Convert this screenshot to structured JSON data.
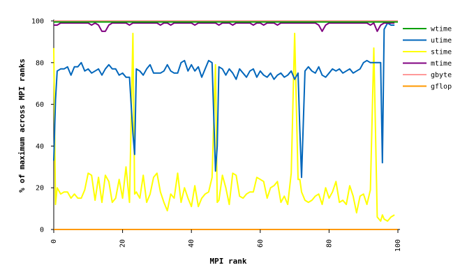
{
  "chart_data": {
    "type": "line",
    "xlabel": "MPI rank",
    "ylabel": "% of maximum across MPI ranks",
    "xlim": [
      0,
      100
    ],
    "ylim": [
      0,
      100
    ],
    "x_ticks": [
      0,
      20,
      40,
      60,
      80,
      100
    ],
    "y_ticks": [
      0,
      20,
      40,
      60,
      80,
      100
    ],
    "grid": false,
    "legend_position": "right",
    "series": [
      {
        "name": "wtime",
        "color": "#00a000",
        "x": [
          0,
          100
        ],
        "values": [
          99.5,
          99.5
        ]
      },
      {
        "name": "utime",
        "color": "#0066bb",
        "x": [
          0,
          0.5,
          1,
          2,
          3,
          4,
          5,
          6,
          7,
          8,
          9,
          10,
          11,
          12,
          13,
          14,
          15,
          16,
          17,
          18,
          19,
          20,
          21,
          22,
          23,
          23.5,
          24,
          25,
          26,
          27,
          28,
          29,
          30,
          31,
          32,
          33,
          34,
          35,
          36,
          37,
          38,
          39,
          40,
          41,
          42,
          43,
          44,
          45,
          46,
          47,
          47.5,
          48,
          49,
          50,
          51,
          52,
          53,
          54,
          55,
          56,
          57,
          58,
          59,
          60,
          61,
          62,
          63,
          64,
          65,
          66,
          67,
          68,
          69,
          70,
          71,
          71.5,
          72,
          73,
          74,
          75,
          76,
          77,
          78,
          79,
          80,
          81,
          82,
          83,
          84,
          85,
          86,
          87,
          88,
          89,
          90,
          91,
          92,
          93,
          94,
          95,
          95.5,
          96,
          97,
          98,
          99
        ],
        "values": [
          33,
          62,
          76,
          77,
          77,
          78,
          74,
          78,
          78,
          80,
          76,
          77,
          75,
          76,
          77,
          74,
          77,
          79,
          77,
          77,
          74,
          75,
          73,
          73,
          46,
          36,
          77,
          76,
          74,
          77,
          79,
          75,
          75,
          75,
          76,
          79,
          76,
          75,
          75,
          80,
          81,
          76,
          79,
          76,
          78,
          73,
          77,
          81,
          80,
          28,
          40,
          78,
          77,
          74,
          77,
          75,
          72,
          77,
          75,
          73,
          76,
          77,
          73,
          76,
          74,
          73,
          75,
          72,
          74,
          75,
          73,
          74,
          76,
          72,
          75,
          48,
          25,
          76,
          78,
          76,
          75,
          78,
          74,
          73,
          75,
          77,
          76,
          77,
          75,
          76,
          77,
          75,
          76,
          77,
          80,
          81,
          80,
          80,
          80,
          80,
          32,
          96,
          99,
          98,
          98
        ]
      },
      {
        "name": "stime",
        "color": "#ffff00",
        "x": [
          0,
          0.5,
          1,
          2,
          3,
          4,
          5,
          6,
          7,
          8,
          9,
          10,
          11,
          12,
          13,
          14,
          15,
          16,
          17,
          18,
          19,
          20,
          21,
          22,
          23,
          23.5,
          24,
          25,
          26,
          27,
          28,
          29,
          30,
          31,
          32,
          33,
          34,
          35,
          36,
          37,
          38,
          39,
          40,
          41,
          42,
          43,
          44,
          45,
          46,
          47,
          47.5,
          48,
          49,
          50,
          51,
          52,
          53,
          54,
          55,
          56,
          57,
          58,
          59,
          60,
          61,
          62,
          63,
          64,
          65,
          66,
          67,
          68,
          69,
          70,
          71,
          71.5,
          72,
          73,
          74,
          75,
          76,
          77,
          78,
          79,
          80,
          81,
          82,
          83,
          84,
          85,
          86,
          87,
          88,
          89,
          90,
          91,
          92,
          93,
          94,
          95,
          95.5,
          96,
          97,
          98,
          99
        ],
        "values": [
          87,
          12,
          20,
          17,
          18,
          18,
          15,
          17,
          15,
          15,
          19,
          27,
          26,
          14,
          25,
          13,
          26,
          23,
          13,
          15,
          24,
          15,
          30,
          13,
          94,
          17,
          18,
          15,
          26,
          13,
          17,
          25,
          27,
          18,
          13,
          9,
          17,
          15,
          27,
          13,
          20,
          15,
          11,
          21,
          11,
          15,
          17,
          18,
          25,
          79,
          13,
          14,
          26,
          20,
          12,
          27,
          26,
          16,
          15,
          17,
          18,
          18,
          25,
          24,
          23,
          15,
          20,
          21,
          23,
          13,
          16,
          12,
          27,
          94,
          24,
          24,
          18,
          14,
          13,
          14,
          16,
          17,
          12,
          20,
          15,
          18,
          23,
          13,
          14,
          12,
          21,
          16,
          8,
          16,
          17,
          12,
          19,
          87,
          6,
          4,
          7,
          5,
          4,
          6,
          7
        ]
      },
      {
        "name": "mtime",
        "color": "#800080",
        "x": [
          0,
          1,
          2,
          3,
          4,
          5,
          6,
          7,
          8,
          9,
          10,
          11,
          12,
          13,
          14,
          15,
          16,
          17,
          18,
          19,
          20,
          21,
          22,
          23,
          24,
          25,
          26,
          27,
          28,
          29,
          30,
          31,
          32,
          33,
          34,
          35,
          36,
          37,
          38,
          39,
          40,
          41,
          42,
          43,
          44,
          45,
          46,
          47,
          48,
          49,
          50,
          51,
          52,
          53,
          54,
          55,
          56,
          57,
          58,
          59,
          60,
          61,
          62,
          63,
          64,
          65,
          66,
          67,
          68,
          69,
          70,
          71,
          72,
          73,
          74,
          75,
          76,
          77,
          78,
          79,
          80,
          81,
          82,
          83,
          84,
          85,
          86,
          87,
          88,
          89,
          90,
          91,
          92,
          93,
          94,
          95,
          96,
          97,
          98,
          99
        ],
        "values": [
          98,
          98,
          99,
          99,
          99,
          99,
          99,
          99,
          99,
          99,
          99,
          98,
          99,
          98,
          95,
          95,
          98,
          99,
          99,
          99,
          99,
          99,
          98,
          99,
          99,
          99,
          99,
          99,
          99,
          99,
          99,
          98,
          99,
          99,
          98,
          99,
          99,
          99,
          99,
          99,
          99,
          98,
          99,
          99,
          99,
          99,
          99,
          99,
          98,
          99,
          99,
          99,
          98,
          99,
          99,
          99,
          99,
          99,
          98,
          99,
          99,
          98,
          99,
          99,
          99,
          98,
          99,
          99,
          99,
          99,
          99,
          99,
          99,
          99,
          99,
          99,
          99,
          98,
          95,
          98,
          99,
          99,
          99,
          99,
          99,
          99,
          99,
          99,
          99,
          99,
          99,
          99,
          98,
          99,
          95,
          98,
          99,
          99,
          99,
          99
        ]
      },
      {
        "name": "gbyte",
        "color": "#ff9999",
        "x": [
          0,
          100
        ],
        "values": [
          100,
          100
        ]
      },
      {
        "name": "gflop",
        "color": "#ff9900",
        "x": [
          0,
          100
        ],
        "values": [
          0,
          0
        ]
      }
    ]
  }
}
